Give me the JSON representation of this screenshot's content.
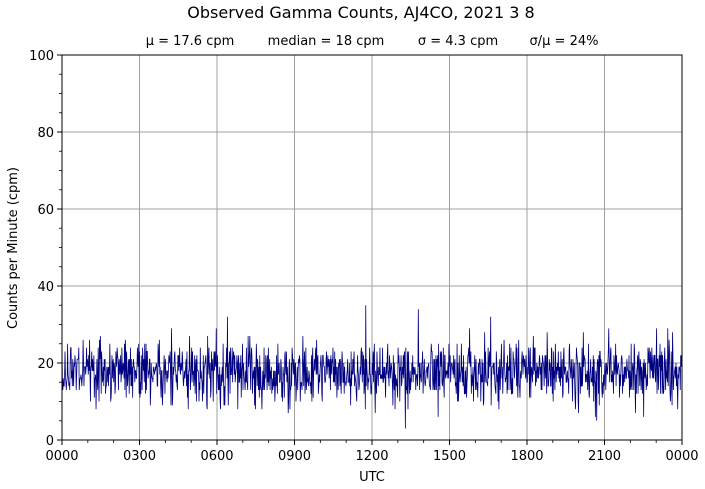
{
  "chart_data": {
    "type": "line",
    "title": "Observed Gamma Counts, AJ4CO, 2021 3 8",
    "stats": {
      "mean": "μ = 17.6 cpm",
      "median": "median = 18 cpm",
      "sigma": "σ = 4.3 cpm",
      "cv": "σ/μ = 24%"
    },
    "xlabel": "UTC",
    "ylabel": "Counts per Minute (cpm)",
    "x_unit": "hours",
    "xlim": [
      0,
      24
    ],
    "ylim": [
      0,
      100
    ],
    "xticks": [
      0,
      3,
      6,
      9,
      12,
      15,
      18,
      21,
      24
    ],
    "xtick_labels": [
      "0000",
      "0300",
      "0600",
      "0900",
      "1200",
      "1500",
      "1800",
      "2100",
      "0000"
    ],
    "yticks": [
      0,
      20,
      40,
      60,
      80,
      100
    ],
    "ytick_labels": [
      "0",
      "20",
      "40",
      "60",
      "80",
      "100"
    ],
    "grid": true,
    "series_color": "#000080",
    "series": [
      {
        "sampling_interval_minutes": 1,
        "values_summary": {
          "mean": 17.6,
          "median": 18,
          "std": 4.3,
          "min": 3,
          "max": 35,
          "n_points": 1440
        },
        "notable_points": [
          {
            "x": 11.75,
            "y": 35
          },
          {
            "x": 13.8,
            "y": 34
          },
          {
            "x": 6.4,
            "y": 32
          },
          {
            "x": 16.6,
            "y": 32
          },
          {
            "x": 13.3,
            "y": 3
          },
          {
            "x": 20.7,
            "y": 5
          }
        ]
      }
    ]
  }
}
